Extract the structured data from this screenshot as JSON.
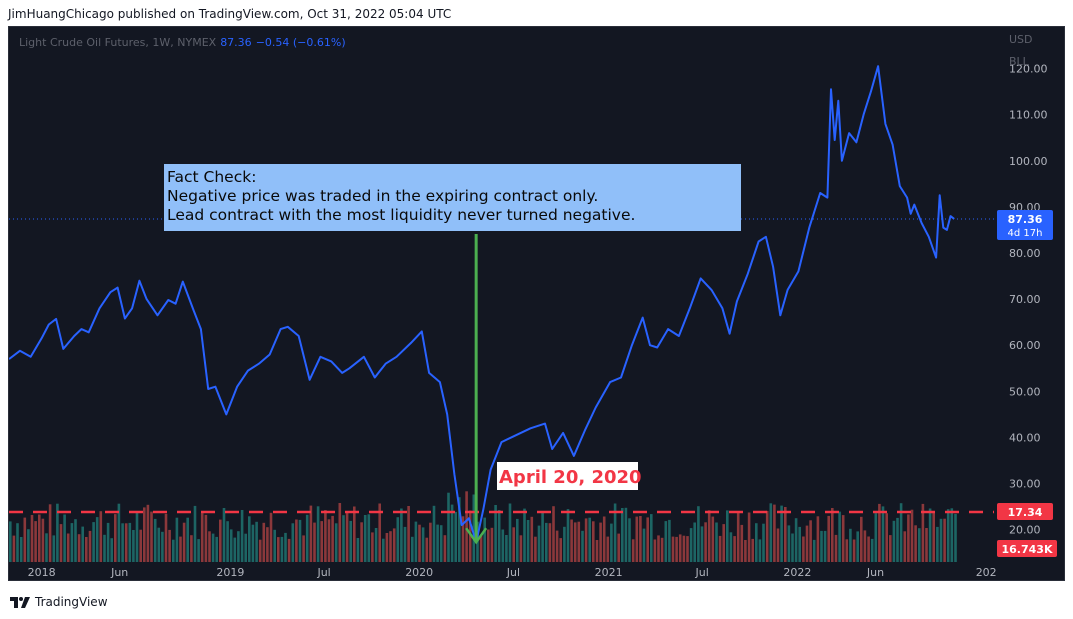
{
  "header": {
    "published_by": "JimHuangChicago published on TradingView.com, Oct 31, 2022 05:04 UTC"
  },
  "legend": {
    "symbol": "Light Crude Oil Futures, 1W, NYMEX",
    "last": "87.36",
    "change": "−0.54 (−0.61%)"
  },
  "price_scale": {
    "currency": "USD",
    "unit": "BLL",
    "last_price_label": "87.36",
    "countdown_label": "4d 17h",
    "volume_ma_label": "17.34",
    "volume_label": "16.743K"
  },
  "footer": {
    "brand": "TradingView"
  },
  "colors": {
    "background": "#131722",
    "line": "#2962ff",
    "vol_up": "#26a69a",
    "vol_down": "#ef5350",
    "accent_green": "#4caf50",
    "annotation_bg": "#90bff9",
    "red_label": "#f23645"
  },
  "chart_data": {
    "type": "line",
    "title": "Light Crude Oil Futures, 1W, NYMEX",
    "xlabel": "",
    "ylabel": "",
    "y_axis_side": "right",
    "y_ticks": [
      20,
      30,
      40,
      50,
      60,
      70,
      80,
      90,
      100,
      110,
      120
    ],
    "ylim": [
      13.0,
      129.0
    ],
    "x_tick_labels": [
      "2018",
      "Jun",
      "2019",
      "Jul",
      "2020",
      "Jul",
      "2021",
      "Jul",
      "2022",
      "Jun",
      "202"
    ],
    "x_tick_dates": [
      "2018-01-01",
      "2018-06-01",
      "2019-01-01",
      "2019-07-01",
      "2020-01-01",
      "2020-07-01",
      "2021-01-01",
      "2021-07-01",
      "2022-01-01",
      "2022-06-01",
      "2023-01-01"
    ],
    "xlim": [
      "2017-10-30",
      "2023-01-16"
    ],
    "grid": false,
    "series": [
      {
        "name": "",
        "points": [
          [
            "2017-10-30",
            57.0
          ],
          [
            "2017-11-20",
            58.8
          ],
          [
            "2017-12-11",
            57.5
          ],
          [
            "2018-01-01",
            61.5
          ],
          [
            "2018-01-15",
            64.5
          ],
          [
            "2018-01-29",
            65.7
          ],
          [
            "2018-02-12",
            59.2
          ],
          [
            "2018-03-05",
            62.0
          ],
          [
            "2018-03-19",
            63.5
          ],
          [
            "2018-04-02",
            62.8
          ],
          [
            "2018-04-23",
            68.0
          ],
          [
            "2018-05-14",
            71.5
          ],
          [
            "2018-05-28",
            72.5
          ],
          [
            "2018-06-11",
            65.8
          ],
          [
            "2018-06-25",
            68.0
          ],
          [
            "2018-07-09",
            74.0
          ],
          [
            "2018-07-23",
            70.0
          ],
          [
            "2018-08-13",
            66.5
          ],
          [
            "2018-09-03",
            69.8
          ],
          [
            "2018-09-17",
            69.0
          ],
          [
            "2018-10-01",
            73.8
          ],
          [
            "2018-10-22",
            67.5
          ],
          [
            "2018-11-05",
            63.5
          ],
          [
            "2018-11-19",
            50.5
          ],
          [
            "2018-12-03",
            51.0
          ],
          [
            "2018-12-24",
            45.0
          ],
          [
            "2019-01-14",
            51.0
          ],
          [
            "2019-02-04",
            54.5
          ],
          [
            "2019-02-25",
            56.0
          ],
          [
            "2019-03-18",
            58.0
          ],
          [
            "2019-04-08",
            63.5
          ],
          [
            "2019-04-22",
            64.0
          ],
          [
            "2019-05-13",
            62.0
          ],
          [
            "2019-06-03",
            52.5
          ],
          [
            "2019-06-24",
            57.5
          ],
          [
            "2019-07-15",
            56.5
          ],
          [
            "2019-08-05",
            54.0
          ],
          [
            "2019-08-19",
            55.0
          ],
          [
            "2019-09-16",
            57.5
          ],
          [
            "2019-10-07",
            53.0
          ],
          [
            "2019-10-28",
            56.0
          ],
          [
            "2019-11-18",
            57.5
          ],
          [
            "2019-12-16",
            60.5
          ],
          [
            "2020-01-06",
            63.0
          ],
          [
            "2020-01-20",
            54.0
          ],
          [
            "2020-02-10",
            52.0
          ],
          [
            "2020-02-24",
            45.0
          ],
          [
            "2020-03-09",
            32.0
          ],
          [
            "2020-03-23",
            21.0
          ],
          [
            "2020-04-06",
            22.5
          ],
          [
            "2020-04-20",
            17.3
          ],
          [
            "2020-05-04",
            24.5
          ],
          [
            "2020-05-18",
            33.0
          ],
          [
            "2020-06-08",
            39.0
          ],
          [
            "2020-07-06",
            40.5
          ],
          [
            "2020-08-03",
            42.0
          ],
          [
            "2020-08-31",
            43.0
          ],
          [
            "2020-09-14",
            37.5
          ],
          [
            "2020-10-05",
            41.0
          ],
          [
            "2020-10-26",
            36.0
          ],
          [
            "2020-11-16",
            41.5
          ],
          [
            "2020-12-07",
            46.5
          ],
          [
            "2021-01-04",
            52.0
          ],
          [
            "2021-01-25",
            53.0
          ],
          [
            "2021-02-15",
            60.0
          ],
          [
            "2021-03-08",
            66.0
          ],
          [
            "2021-03-22",
            60.0
          ],
          [
            "2021-04-05",
            59.5
          ],
          [
            "2021-04-26",
            63.5
          ],
          [
            "2021-05-17",
            62.0
          ],
          [
            "2021-06-07",
            68.0
          ],
          [
            "2021-06-28",
            74.5
          ],
          [
            "2021-07-19",
            72.0
          ],
          [
            "2021-08-09",
            68.0
          ],
          [
            "2021-08-23",
            62.5
          ],
          [
            "2021-09-06",
            69.5
          ],
          [
            "2021-09-27",
            75.5
          ],
          [
            "2021-10-18",
            82.5
          ],
          [
            "2021-11-01",
            83.5
          ],
          [
            "2021-11-15",
            77.0
          ],
          [
            "2021-11-29",
            66.5
          ],
          [
            "2021-12-13",
            72.0
          ],
          [
            "2022-01-03",
            76.0
          ],
          [
            "2022-01-24",
            85.5
          ],
          [
            "2022-02-14",
            93.0
          ],
          [
            "2022-02-28",
            92.0
          ],
          [
            "2022-03-07",
            115.5
          ],
          [
            "2022-03-14",
            104.5
          ],
          [
            "2022-03-21",
            113.0
          ],
          [
            "2022-03-28",
            100.0
          ],
          [
            "2022-04-11",
            106.0
          ],
          [
            "2022-04-25",
            104.0
          ],
          [
            "2022-05-09",
            110.0
          ],
          [
            "2022-05-23",
            115.0
          ],
          [
            "2022-06-06",
            120.5
          ],
          [
            "2022-06-20",
            108.0
          ],
          [
            "2022-07-04",
            103.5
          ],
          [
            "2022-07-18",
            94.5
          ],
          [
            "2022-08-01",
            92.0
          ],
          [
            "2022-08-08",
            88.5
          ],
          [
            "2022-08-15",
            90.5
          ],
          [
            "2022-08-29",
            86.5
          ],
          [
            "2022-09-12",
            83.5
          ],
          [
            "2022-09-26",
            79.0
          ],
          [
            "2022-10-03",
            92.5
          ],
          [
            "2022-10-10",
            85.5
          ],
          [
            "2022-10-17",
            85.0
          ],
          [
            "2022-10-24",
            88.0
          ],
          [
            "2022-10-31",
            87.4
          ]
        ]
      }
    ],
    "volume_ma": 17.34,
    "last_value": 87.36,
    "annotations": [
      "Fact Check:\nNegative price was traded in the expiring contract only.\nLead contract with the most liquidity never turned negative.",
      "April 20, 2020"
    ],
    "annotation_date": "2020-04-20",
    "annotation_price": 17.3
  }
}
